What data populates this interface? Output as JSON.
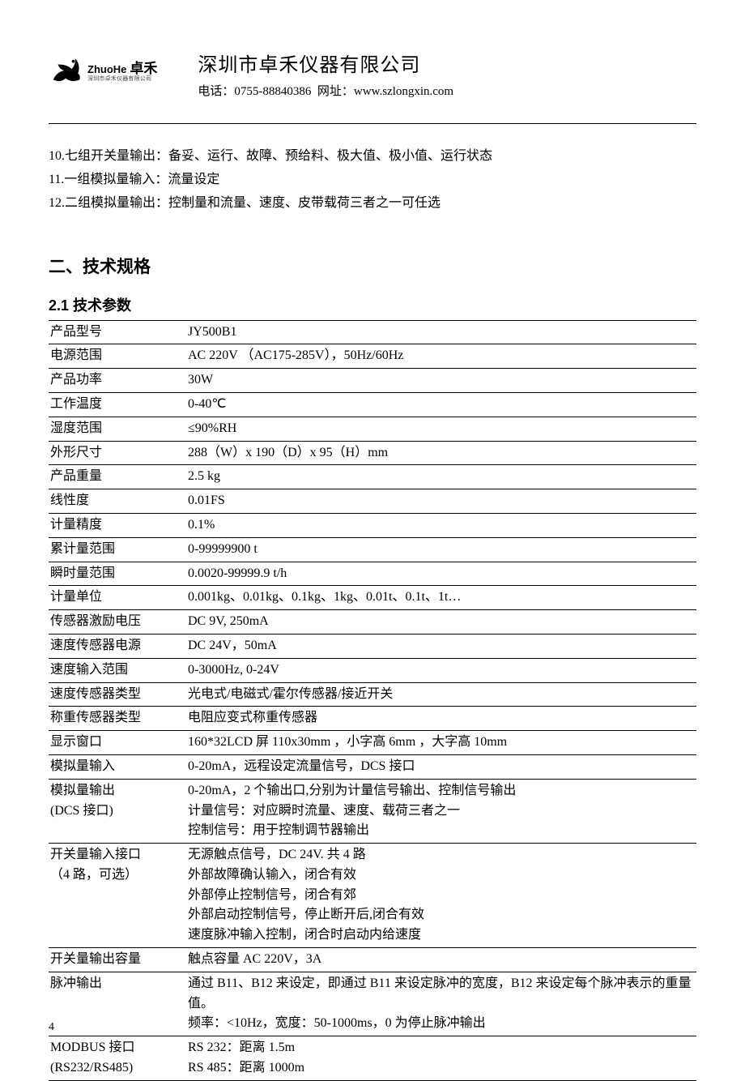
{
  "header": {
    "logo": {
      "brand_en": "ZhuoHe",
      "brand_cn": "卓禾",
      "subline": "深圳市卓禾仪器有限公司"
    },
    "company_name": "深圳市卓禾仪器有限公司",
    "phone_label": "电话：",
    "phone_value": "0755-88840386",
    "url_label": "网址：",
    "url_value": "www.szlongxin.com"
  },
  "list_items": [
    "10.七组开关量输出：备妥、运行、故障、预给料、极大值、极小值、运行状态",
    "11.一组模拟量输入：流量设定",
    "12.二组模拟量输出：控制量和流量、速度、皮带载荷三者之一可任选"
  ],
  "section_title": "二、技术规格",
  "subsection_title": "2.1 技术参数",
  "spec_rows": [
    {
      "label": "产品型号",
      "value": "JY500B1"
    },
    {
      "label": "电源范围",
      "value": "AC 220V （AC175-285V），50Hz/60Hz"
    },
    {
      "label": "产品功率",
      "value": "30W"
    },
    {
      "label": "工作温度",
      "value": "0-40℃"
    },
    {
      "label": "湿度范围",
      "value": "≤90%RH"
    },
    {
      "label": "外形尺寸",
      "value": "288（W）x 190（D）x 95（H）mm"
    },
    {
      "label": "产品重量",
      "value": "2.5 kg"
    },
    {
      "label": "线性度",
      "value": "0.01FS"
    },
    {
      "label": "计量精度",
      "value": "0.1%"
    },
    {
      "label": "累计量范围",
      "value": "0-99999900 t"
    },
    {
      "label": "瞬时量范围",
      "value": "0.0020-99999.9 t/h"
    },
    {
      "label": "计量单位",
      "value": "0.001kg、0.01kg、0.1kg、1kg、0.01t、0.1t、1t…"
    },
    {
      "label": "传感器激励电压",
      "value": "DC 9V, 250mA"
    },
    {
      "label": "速度传感器电源",
      "value": "DC 24V，50mA"
    },
    {
      "label": "速度输入范围",
      "value": "0-3000Hz, 0-24V"
    },
    {
      "label": "速度传感器类型",
      "value": "光电式/电磁式/霍尔传感器/接近开关"
    },
    {
      "label": "称重传感器类型",
      "value": "电阻应变式称重传感器"
    },
    {
      "label": "显示窗口",
      "value": "160*32LCD 屏 110x30mm ，小字高 6mm ，大字高 10mm"
    },
    {
      "label": "模拟量输入",
      "value": "0-20mA，远程设定流量信号，DCS 接口"
    },
    {
      "label": "模拟量输出\n(DCS 接口)",
      "value": "0-20mA，2 个输出口,分别为计量信号输出、控制信号输出\n计量信号：对应瞬时流量、速度、载荷三者之一\n控制信号：用于控制调节器输出"
    },
    {
      "label": "开关量输入接口\n（4 路，可选）",
      "value": "无源触点信号，DC 24V. 共 4 路\n外部故障确认输入，闭合有效\n外部停止控制信号，闭合有郊\n外部启动控制信号，停止断开后,闭合有效\n速度脉冲输入控制，闭合时启动内给速度"
    },
    {
      "label": "开关量输出容量",
      "value": "触点容量 AC 220V，3A"
    },
    {
      "label": "脉冲输出",
      "value": "通过 B11、B12 来设定，即通过 B11 来设定脉冲的宽度，B12 来设定每个脉冲表示的重量值。\n频率：<10Hz，宽度：50-1000ms，0 为停止脉冲输出"
    },
    {
      "label": "MODBUS 接口\n(RS232/RS485)",
      "value": "RS 232：距离 1.5m\nRS 485：距离 1000m"
    }
  ],
  "page_number": "4"
}
